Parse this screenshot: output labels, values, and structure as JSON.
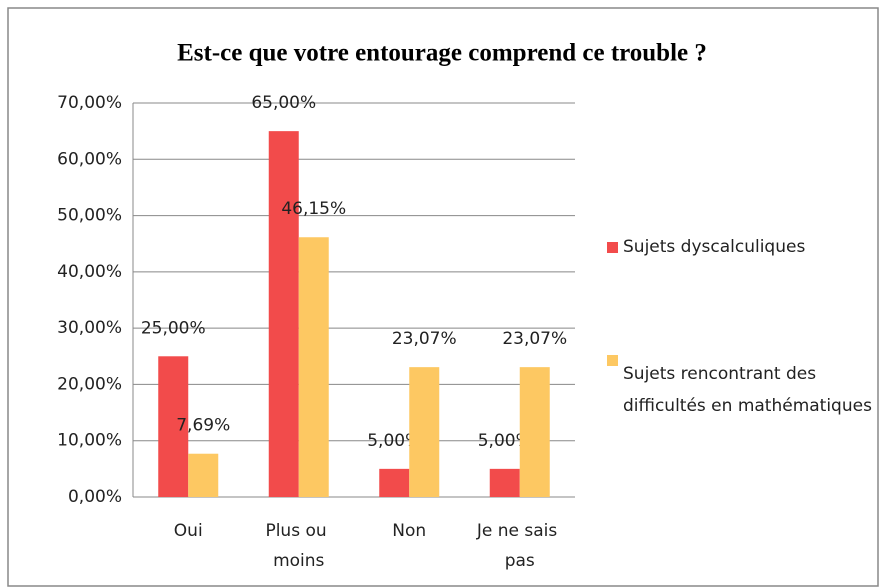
{
  "chart_data": {
    "type": "bar",
    "title": "Est-ce que votre entourage comprend ce trouble ?",
    "categories": [
      "Oui",
      "Plus ou moins",
      "Non",
      "Je ne sais pas"
    ],
    "series": [
      {
        "name": "Sujets dyscalculiques",
        "color": "#f24b4b",
        "values": [
          25,
          65,
          5,
          5
        ],
        "value_labels": [
          "25,00%",
          "65,00%",
          "5,00%",
          "5,00%"
        ]
      },
      {
        "name": "Sujets rencontrant des difficultés en mathématiques",
        "color": "#fdc862",
        "values": [
          7.69,
          46.15,
          23.07,
          23.07
        ],
        "value_labels": [
          "7,69%",
          "46,15%",
          "23,07%",
          "23,07%"
        ]
      }
    ],
    "ylim": [
      0,
      70
    ],
    "yticks": [
      {
        "value": 0,
        "label": "0,00%"
      },
      {
        "value": 10,
        "label": "10,00%"
      },
      {
        "value": 20,
        "label": "20,00%"
      },
      {
        "value": 30,
        "label": "30,00%"
      },
      {
        "value": 40,
        "label": "40,00%"
      },
      {
        "value": 50,
        "label": "50,00%"
      },
      {
        "value": 60,
        "label": "60,00%"
      },
      {
        "value": 70,
        "label": "70,00%"
      }
    ],
    "grid": true,
    "legend": "right"
  }
}
